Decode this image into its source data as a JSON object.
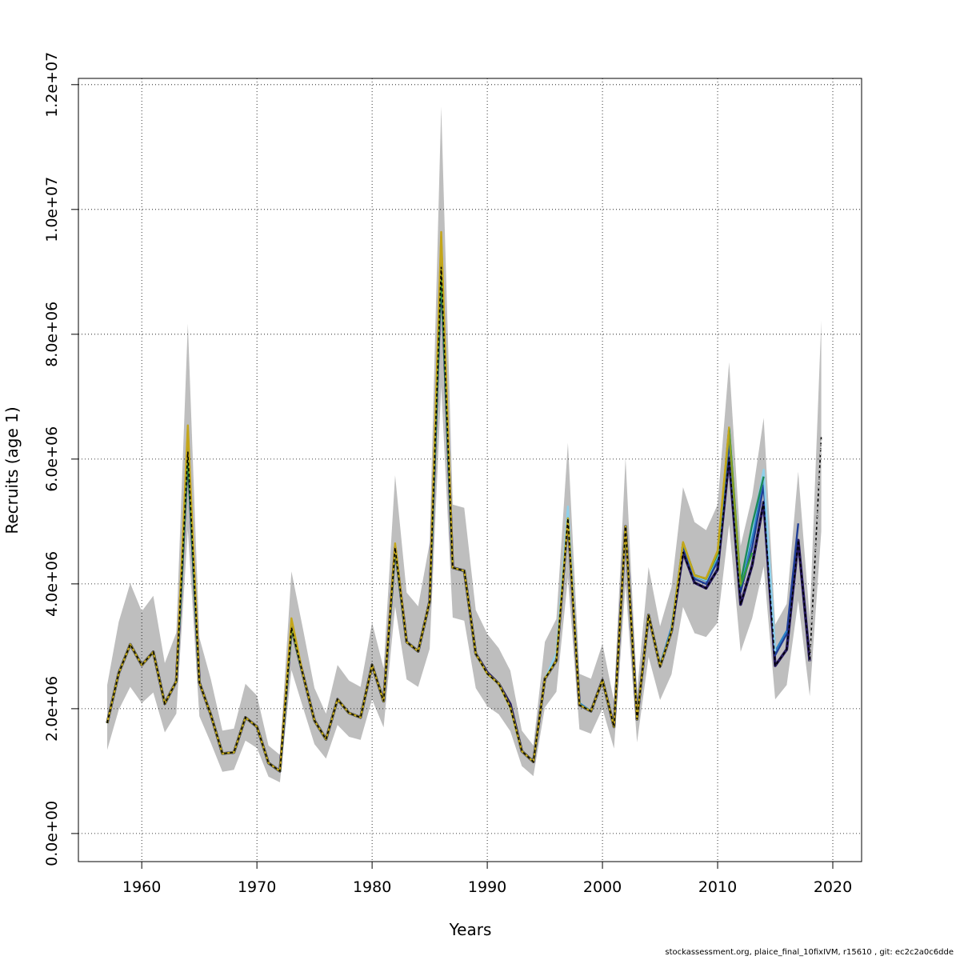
{
  "chart_data": {
    "type": "line",
    "title": "",
    "xlabel": "Years",
    "ylabel": "Recruits (age 1)",
    "xlim": [
      1954.5,
      2022.5
    ],
    "ylim": [
      -450000,
      12100000
    ],
    "x_ticks": [
      1960,
      1970,
      1980,
      1990,
      2000,
      2010,
      2020
    ],
    "x_tick_labels": [
      "1960",
      "1970",
      "1980",
      "1990",
      "2000",
      "2010",
      "2020"
    ],
    "y_ticks": [
      0,
      2000000,
      4000000,
      6000000,
      8000000,
      10000000,
      12000000
    ],
    "y_tick_labels": [
      "0.0e+00",
      "2.0e+06",
      "4.0e+06",
      "6.0e+06",
      "8.0e+06",
      "1.0e+07",
      "1.2e+07"
    ],
    "grid": true,
    "legend": "none",
    "colors": {
      "band": "#bebebe",
      "final": "#000000",
      "retro": [
        "#26195e",
        "#1f3d96",
        "#2a7fc4",
        "#8fd0ea",
        "#1c8a5a",
        "#2e9e3e",
        "#8a9e24",
        "#c4a61a"
      ]
    },
    "years": [
      1957,
      1958,
      1959,
      1960,
      1961,
      1962,
      1963,
      1964,
      1965,
      1966,
      1967,
      1968,
      1969,
      1970,
      1971,
      1972,
      1973,
      1974,
      1975,
      1976,
      1977,
      1978,
      1979,
      1980,
      1981,
      1982,
      1983,
      1984,
      1985,
      1986,
      1987,
      1988,
      1989,
      1990,
      1991,
      1992,
      1993,
      1994,
      1995,
      1996,
      1997,
      1998,
      1999,
      2000,
      2001,
      2002,
      2003,
      2004,
      2005,
      2006,
      2007,
      2008,
      2009,
      2010,
      2011,
      2012,
      2013,
      2014,
      2015,
      2016,
      2017,
      2018,
      2019
    ],
    "estimate": [
      1770000,
      2570000,
      3030000,
      2700000,
      2910000,
      2080000,
      2440000,
      6120000,
      2420000,
      1900000,
      1280000,
      1300000,
      1860000,
      1710000,
      1130000,
      1000000,
      3300000,
      2550000,
      1810000,
      1510000,
      2150000,
      1930000,
      1860000,
      2700000,
      2120000,
      4580000,
      3070000,
      2920000,
      3720000,
      9080000,
      4260000,
      4210000,
      2880000,
      2560000,
      2400000,
      2020000,
      1320000,
      1150000,
      2480000,
      2770000,
      5050000,
      2060000,
      1960000,
      2460000,
      1710000,
      4920000,
      1830000,
      3500000,
      2680000,
      3240000,
      4510000,
      4020000,
      3930000,
      4230000,
      6020000,
      3670000,
      4300000,
      5310000,
      2690000,
      2950000,
      4700000,
      2760000,
      6360000
    ],
    "lower": [
      1340000,
      1980000,
      2350000,
      2090000,
      2260000,
      1620000,
      1920000,
      4870000,
      1880000,
      1450000,
      990000,
      1020000,
      1490000,
      1370000,
      910000,
      820000,
      2620000,
      2020000,
      1430000,
      1200000,
      1740000,
      1550000,
      1500000,
      2150000,
      1700000,
      3640000,
      2470000,
      2350000,
      2960000,
      7170000,
      3460000,
      3410000,
      2330000,
      2040000,
      1910000,
      1640000,
      1080000,
      920000,
      2020000,
      2270000,
      4100000,
      1670000,
      1600000,
      2000000,
      1360000,
      3990000,
      1460000,
      2830000,
      2140000,
      2550000,
      3630000,
      3210000,
      3150000,
      3380000,
      4950000,
      2910000,
      3450000,
      4280000,
      2150000,
      2380000,
      3730000,
      2200000,
      4840000
    ],
    "upper": [
      2380000,
      3390000,
      4010000,
      3560000,
      3810000,
      2730000,
      3220000,
      8170000,
      3140000,
      2470000,
      1650000,
      1680000,
      2400000,
      2210000,
      1410000,
      1260000,
      4200000,
      3280000,
      2330000,
      1920000,
      2700000,
      2450000,
      2350000,
      3380000,
      2650000,
      5740000,
      3860000,
      3640000,
      4660000,
      11650000,
      5270000,
      5220000,
      3580000,
      3200000,
      2970000,
      2610000,
      1650000,
      1410000,
      3070000,
      3440000,
      6260000,
      2560000,
      2480000,
      3040000,
      2120000,
      6020000,
      2270000,
      4270000,
      3320000,
      3950000,
      5550000,
      4990000,
      4860000,
      5270000,
      7550000,
      4610000,
      5400000,
      6660000,
      3350000,
      3680000,
      5800000,
      3430000,
      8220000
    ],
    "retrospective_peels": [
      {
        "start_index": 0,
        "end_year": 2018,
        "offsets": {
          "1990": 20000,
          "1992": 50000,
          "1996": 0,
          "2011": 0,
          "2012": 0,
          "2014": 0,
          "2015": 0,
          "2017": 0
        }
      },
      {
        "end_year": 2017,
        "adjust": {
          "2007": 100000,
          "2008": 60000,
          "2009": 70000,
          "2010": 130000,
          "2011": 260000,
          "2012": 200000,
          "2013": 280000,
          "2014": 270000,
          "2015": 170000,
          "2016": 250000,
          "2017": 270000
        }
      },
      {
        "end_year": 2016,
        "adjust": {
          "1998": 30000,
          "2005": 20000,
          "2006": 60000,
          "2007": 140000,
          "2008": 100000,
          "2009": 120000,
          "2010": 200000,
          "2011": 400000,
          "2012": 300000,
          "2013": 430000,
          "2014": 430000,
          "2015": 230000,
          "2016": 300000
        }
      },
      {
        "end_year": 2015,
        "adjust": {
          "1996": 120000,
          "1997": 190000,
          "2007": 150000,
          "2008": 110000,
          "2009": 130000,
          "2010": 230000,
          "2011": 450000,
          "2012": 350000,
          "2013": 570000,
          "2014": 520000,
          "2015": 230000
        }
      },
      {
        "end_year": 2014,
        "adjust": {
          "2007": 150000,
          "2008": 120000,
          "2009": 150000,
          "2010": 250000,
          "2011": 480000,
          "2012": 350000,
          "2013": 650000,
          "2014": 410000
        }
      },
      {
        "end_year": 2013,
        "adjust": {
          "2007": 150000,
          "2008": 120000,
          "2009": 150000,
          "2010": 250000,
          "2011": 470000,
          "2012": 300000,
          "2013": 200000
        }
      },
      {
        "end_year": 2012,
        "adjust": {
          "1964": 350000,
          "1986": 480000,
          "2007": 150000,
          "2008": 120000,
          "2009": 150000,
          "2010": 280000,
          "2011": 400000,
          "2012": 320000
        }
      },
      {
        "end_year": 2011,
        "adjust": {
          "1964": 420000,
          "1986": 560000,
          "1973": 150000,
          "1982": 70000,
          "2007": 160000,
          "2008": 110000,
          "2009": 160000,
          "2010": 300000,
          "2011": 500000
        }
      }
    ]
  },
  "footer": {
    "note": "stockassessment.org, plaice_final_10fixIVM, r15610 , git: ec2c2a0c6dde"
  }
}
